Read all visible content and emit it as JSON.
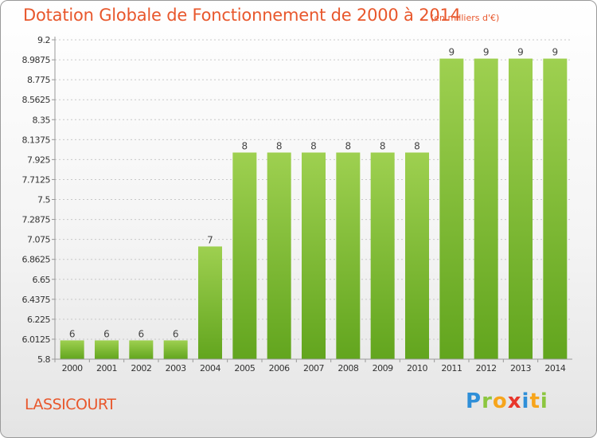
{
  "title": "Dotation Globale de Fonctionnement de 2000 à 2014",
  "unit": "(en milliers d'€)",
  "commune": "LASSICOURT",
  "logo": {
    "letters": [
      "P",
      "r",
      "o",
      "x",
      "i",
      "t",
      "i"
    ],
    "colors": [
      "#2f8fd8",
      "#8cc63f",
      "#f7a51c",
      "#e8372c",
      "#2f8fd8",
      "#f7a51c",
      "#8cc63f"
    ]
  },
  "colors": {
    "bar_light": "#9ed050",
    "bar_dark": "#62a51e",
    "axis": "#999999",
    "grid": "#c8c8c8",
    "accent": "#e8572c"
  },
  "chart_data": {
    "type": "bar",
    "title": "Dotation Globale de Fonctionnement de 2000 à 2014",
    "categories": [
      "2000",
      "2001",
      "2002",
      "2003",
      "2004",
      "2005",
      "2006",
      "2007",
      "2008",
      "2009",
      "2010",
      "2011",
      "2012",
      "2013",
      "2014"
    ],
    "values": [
      6,
      6,
      6,
      6,
      7,
      8,
      8,
      8,
      8,
      8,
      8,
      9,
      9,
      9,
      9
    ],
    "value_labels": [
      "6",
      "6",
      "6",
      "6",
      "7",
      "8",
      "8",
      "8",
      "8",
      "8",
      "8",
      "9",
      "9",
      "9",
      "9"
    ],
    "yticks": [
      "9.2",
      "8.9875",
      "8.775",
      "8.5625",
      "8.35",
      "8.1375",
      "7.925",
      "7.7125",
      "7.5",
      "7.2875",
      "7.075",
      "6.8625",
      "6.65",
      "6.4375",
      "6.225",
      "6.0125",
      "5.8"
    ],
    "ylim": [
      5.8,
      9.2
    ],
    "grid": true,
    "xlabel": "",
    "ylabel": ""
  }
}
